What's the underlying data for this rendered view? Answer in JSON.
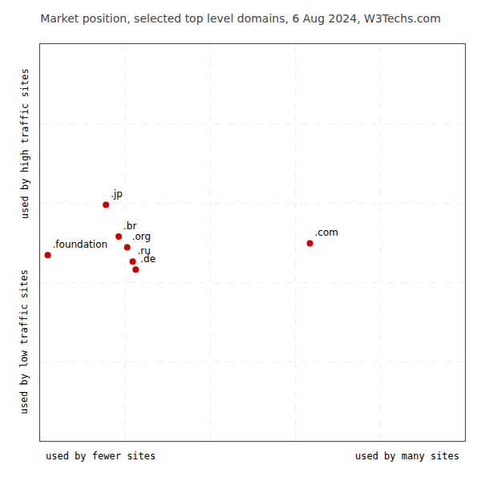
{
  "chart_data": {
    "type": "scatter",
    "title": "Market position, selected top level domains, 6 Aug 2024, W3Techs.com",
    "xlabel": [
      "used by fewer sites",
      "used by many sites"
    ],
    "ylabel": [
      "used by low traffic sites",
      "used by high traffic sites"
    ],
    "labels": [
      ".jp",
      ".br",
      ".org",
      ".foundation",
      ".ru",
      ".de",
      ".com"
    ],
    "x": [
      0.155,
      0.185,
      0.205,
      0.018,
      0.218,
      0.225,
      0.635
    ],
    "values": [
      0.595,
      0.515,
      0.488,
      0.468,
      0.452,
      0.432,
      0.498
    ],
    "color": "#cc0000",
    "marker": "circle",
    "xlim": [
      0,
      1
    ],
    "ylim": [
      0,
      1
    ],
    "xticks": [
      0.2,
      0.4,
      0.6,
      0.8
    ],
    "yticks": [
      0.2,
      0.4,
      0.6,
      0.8
    ],
    "grid": true,
    "tick_labels": false
  }
}
